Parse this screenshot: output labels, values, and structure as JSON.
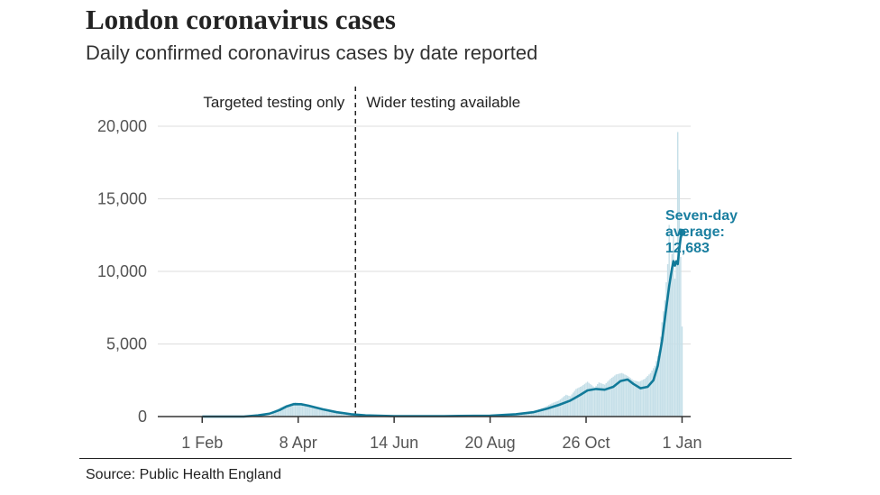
{
  "header": {
    "title": "London coronavirus cases",
    "subtitle": "Daily confirmed coronavirus cases by date reported"
  },
  "footer": {
    "source": "Source: Public Health England"
  },
  "colors": {
    "line": "#117a99",
    "bars": "#c5dfe8",
    "grid": "#dddddd",
    "axis": "#333333"
  },
  "chart_data": {
    "type": "line",
    "title": "London coronavirus cases",
    "subtitle": "Daily confirmed coronavirus cases by date reported",
    "xlabel": "",
    "ylabel": "",
    "ylim": [
      0,
      20000
    ],
    "yticks": [
      0,
      5000,
      10000,
      15000,
      20000
    ],
    "ytick_labels": [
      "0",
      "5,000",
      "10,000",
      "15,000",
      "20,000"
    ],
    "xticks": [
      {
        "day": 31,
        "label": "1 Feb"
      },
      {
        "day": 98,
        "label": "8 Apr"
      },
      {
        "day": 165,
        "label": "14 Jun"
      },
      {
        "day": 232,
        "label": "20 Aug"
      },
      {
        "day": 299,
        "label": "26 Oct"
      },
      {
        "day": 366,
        "label": "1 Jan"
      }
    ],
    "xlim": [
      0,
      372
    ],
    "phases": [
      {
        "label": "Targeted testing only",
        "position": "left"
      },
      {
        "label": "Wider testing available",
        "position": "right"
      }
    ],
    "divider_day": 138,
    "annotation": {
      "label_lines": [
        "Seven-day",
        "average:",
        "12,683"
      ],
      "day": 366,
      "value": 12683
    },
    "series": [
      {
        "name": "Seven-day average",
        "points": [
          [
            31,
            0
          ],
          [
            60,
            0
          ],
          [
            70,
            80
          ],
          [
            78,
            200
          ],
          [
            85,
            450
          ],
          [
            90,
            700
          ],
          [
            95,
            850
          ],
          [
            100,
            850
          ],
          [
            105,
            750
          ],
          [
            115,
            500
          ],
          [
            125,
            300
          ],
          [
            135,
            160
          ],
          [
            145,
            80
          ],
          [
            165,
            30
          ],
          [
            200,
            30
          ],
          [
            232,
            60
          ],
          [
            250,
            160
          ],
          [
            262,
            300
          ],
          [
            272,
            550
          ],
          [
            280,
            800
          ],
          [
            288,
            1100
          ],
          [
            295,
            1500
          ],
          [
            300,
            1800
          ],
          [
            306,
            1900
          ],
          [
            312,
            1850
          ],
          [
            318,
            2050
          ],
          [
            323,
            2450
          ],
          [
            328,
            2550
          ],
          [
            332,
            2250
          ],
          [
            337,
            1950
          ],
          [
            342,
            2050
          ],
          [
            346,
            2500
          ],
          [
            349,
            3500
          ],
          [
            352,
            5200
          ],
          [
            355,
            7500
          ],
          [
            357,
            9000
          ],
          [
            359,
            10200
          ],
          [
            360,
            10700
          ],
          [
            361,
            10400
          ],
          [
            362,
            10700
          ],
          [
            363,
            10500
          ],
          [
            364,
            11500
          ],
          [
            365,
            12300
          ],
          [
            366,
            12683
          ]
        ]
      },
      {
        "name": "Daily cases",
        "points": [
          [
            80,
            300
          ],
          [
            85,
            600
          ],
          [
            90,
            800
          ],
          [
            93,
            900
          ],
          [
            96,
            1000
          ],
          [
            100,
            900
          ],
          [
            104,
            800
          ],
          [
            110,
            600
          ],
          [
            120,
            380
          ],
          [
            130,
            250
          ],
          [
            140,
            120
          ],
          [
            150,
            60
          ],
          [
            180,
            30
          ],
          [
            232,
            70
          ],
          [
            250,
            180
          ],
          [
            262,
            350
          ],
          [
            270,
            650
          ],
          [
            276,
            950
          ],
          [
            280,
            1100
          ],
          [
            285,
            1500
          ],
          [
            288,
            1400
          ],
          [
            292,
            1900
          ],
          [
            296,
            2100
          ],
          [
            300,
            2400
          ],
          [
            305,
            2000
          ],
          [
            308,
            2350
          ],
          [
            312,
            2200
          ],
          [
            316,
            2600
          ],
          [
            320,
            2900
          ],
          [
            324,
            3000
          ],
          [
            328,
            2800
          ],
          [
            332,
            2500
          ],
          [
            336,
            2400
          ],
          [
            340,
            2600
          ],
          [
            344,
            3000
          ],
          [
            347,
            3500
          ],
          [
            350,
            4500
          ],
          [
            352,
            6500
          ],
          [
            354,
            8000
          ],
          [
            356,
            10500
          ],
          [
            357,
            13200
          ],
          [
            358,
            9800
          ],
          [
            359,
            11200
          ],
          [
            360,
            12500
          ],
          [
            361,
            9500
          ],
          [
            362,
            10500
          ],
          [
            363,
            19600
          ],
          [
            364,
            17000
          ],
          [
            365,
            11000
          ],
          [
            366,
            6200
          ]
        ]
      }
    ]
  }
}
